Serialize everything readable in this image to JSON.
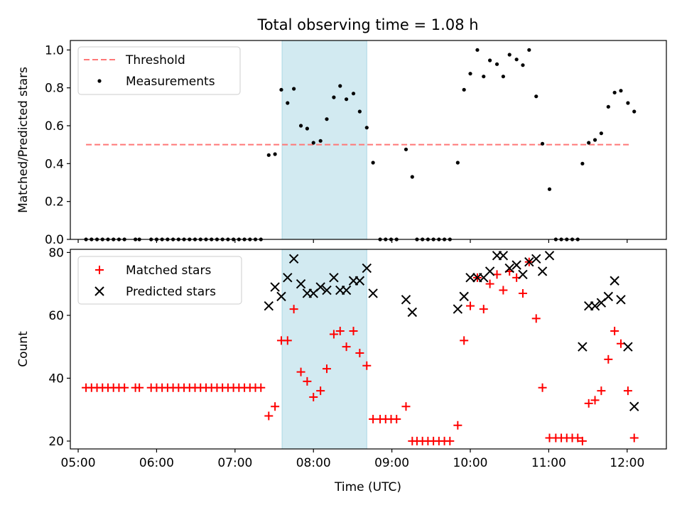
{
  "title": "Total observing time = 1.08 h",
  "chart_data": [
    {
      "type": "scatter",
      "ylabel": "Matched/Predicted stars",
      "xlim": [
        4.9,
        12.5
      ],
      "ylim": [
        0,
        1.05
      ],
      "grid": false,
      "legend_position": "top-left",
      "yticks": [
        {
          "v": 0,
          "label": "0.0"
        },
        {
          "v": 0.2,
          "label": "0.2"
        },
        {
          "v": 0.4,
          "label": "0.4"
        },
        {
          "v": 0.6,
          "label": "0.6"
        },
        {
          "v": 0.8,
          "label": "0.8"
        },
        {
          "v": 1.0,
          "label": "1.0"
        }
      ],
      "span": {
        "x0": 7.6,
        "x1": 8.68,
        "color": "#add8e6"
      },
      "threshold": {
        "name": "Threshold",
        "y": 0.5,
        "x0": 5.1,
        "x1": 12.03,
        "color": "#ff7777"
      },
      "series": [
        {
          "name": "Measurements",
          "color": "#000000",
          "marker": "dot",
          "points": [
            [
              5.1,
              0
            ],
            [
              5.17,
              0
            ],
            [
              5.24,
              0
            ],
            [
              5.31,
              0
            ],
            [
              5.38,
              0
            ],
            [
              5.45,
              0
            ],
            [
              5.52,
              0
            ],
            [
              5.59,
              0
            ],
            [
              5.73,
              0
            ],
            [
              5.78,
              0
            ],
            [
              5.93,
              0
            ],
            [
              6.0,
              0
            ],
            [
              6.07,
              0
            ],
            [
              6.14,
              0
            ],
            [
              6.21,
              0
            ],
            [
              6.28,
              0
            ],
            [
              6.35,
              0
            ],
            [
              6.42,
              0
            ],
            [
              6.49,
              0
            ],
            [
              6.56,
              0
            ],
            [
              6.63,
              0
            ],
            [
              6.7,
              0
            ],
            [
              6.77,
              0
            ],
            [
              6.84,
              0
            ],
            [
              6.91,
              0
            ],
            [
              6.98,
              0
            ],
            [
              7.05,
              0
            ],
            [
              7.12,
              0
            ],
            [
              7.19,
              0
            ],
            [
              7.26,
              0
            ],
            [
              7.33,
              0
            ],
            [
              7.43,
              0.445
            ],
            [
              7.51,
              0.45
            ],
            [
              7.59,
              0.79
            ],
            [
              7.67,
              0.72
            ],
            [
              7.75,
              0.795
            ],
            [
              7.84,
              0.6
            ],
            [
              7.92,
              0.585
            ],
            [
              8.0,
              0.51
            ],
            [
              8.09,
              0.52
            ],
            [
              8.17,
              0.635
            ],
            [
              8.26,
              0.75
            ],
            [
              8.34,
              0.81
            ],
            [
              8.42,
              0.74
            ],
            [
              8.51,
              0.77
            ],
            [
              8.59,
              0.675
            ],
            [
              8.68,
              0.59
            ],
            [
              8.76,
              0.405
            ],
            [
              8.85,
              0
            ],
            [
              8.92,
              0
            ],
            [
              8.99,
              0
            ],
            [
              9.06,
              0
            ],
            [
              9.18,
              0.475
            ],
            [
              9.26,
              0.33
            ],
            [
              9.32,
              0
            ],
            [
              9.39,
              0
            ],
            [
              9.46,
              0
            ],
            [
              9.53,
              0
            ],
            [
              9.6,
              0
            ],
            [
              9.67,
              0
            ],
            [
              9.74,
              0
            ],
            [
              9.84,
              0.405
            ],
            [
              9.92,
              0.79
            ],
            [
              10.0,
              0.875
            ],
            [
              10.09,
              1.0
            ],
            [
              10.17,
              0.86
            ],
            [
              10.25,
              0.945
            ],
            [
              10.34,
              0.925
            ],
            [
              10.42,
              0.86
            ],
            [
              10.5,
              0.975
            ],
            [
              10.59,
              0.95
            ],
            [
              10.67,
              0.92
            ],
            [
              10.75,
              1.0
            ],
            [
              10.84,
              0.755
            ],
            [
              10.92,
              0.505
            ],
            [
              11.01,
              0.265
            ],
            [
              11.09,
              0
            ],
            [
              11.16,
              0
            ],
            [
              11.23,
              0
            ],
            [
              11.3,
              0
            ],
            [
              11.37,
              0
            ],
            [
              11.43,
              0.4
            ],
            [
              11.51,
              0.51
            ],
            [
              11.59,
              0.525
            ],
            [
              11.67,
              0.56
            ],
            [
              11.76,
              0.7
            ],
            [
              11.84,
              0.775
            ],
            [
              11.92,
              0.785
            ],
            [
              12.01,
              0.72
            ],
            [
              12.09,
              0.675
            ]
          ]
        }
      ]
    },
    {
      "type": "scatter",
      "ylabel": "Count",
      "xlabel": "Time (UTC)",
      "xlim": [
        4.9,
        12.5
      ],
      "ylim": [
        17.5,
        81
      ],
      "grid": false,
      "legend_position": "top-left",
      "xticks": [
        {
          "v": 5,
          "label": "05:00"
        },
        {
          "v": 6,
          "label": "06:00"
        },
        {
          "v": 7,
          "label": "07:00"
        },
        {
          "v": 8,
          "label": "08:00"
        },
        {
          "v": 9,
          "label": "09:00"
        },
        {
          "v": 10,
          "label": "10:00"
        },
        {
          "v": 11,
          "label": "11:00"
        },
        {
          "v": 12,
          "label": "12:00"
        }
      ],
      "yticks": [
        {
          "v": 20,
          "label": "20"
        },
        {
          "v": 40,
          "label": "40"
        },
        {
          "v": 60,
          "label": "60"
        },
        {
          "v": 80,
          "label": "80"
        }
      ],
      "span": {
        "x0": 7.6,
        "x1": 8.68,
        "color": "#add8e6"
      },
      "series": [
        {
          "name": "Matched stars",
          "color": "#ff0000",
          "marker": "plus",
          "points": [
            [
              5.1,
              37
            ],
            [
              5.17,
              37
            ],
            [
              5.24,
              37
            ],
            [
              5.31,
              37
            ],
            [
              5.38,
              37
            ],
            [
              5.45,
              37
            ],
            [
              5.52,
              37
            ],
            [
              5.59,
              37
            ],
            [
              5.73,
              37
            ],
            [
              5.78,
              37
            ],
            [
              5.93,
              37
            ],
            [
              6.0,
              37
            ],
            [
              6.07,
              37
            ],
            [
              6.14,
              37
            ],
            [
              6.21,
              37
            ],
            [
              6.28,
              37
            ],
            [
              6.35,
              37
            ],
            [
              6.42,
              37
            ],
            [
              6.49,
              37
            ],
            [
              6.56,
              37
            ],
            [
              6.63,
              37
            ],
            [
              6.7,
              37
            ],
            [
              6.77,
              37
            ],
            [
              6.84,
              37
            ],
            [
              6.91,
              37
            ],
            [
              6.98,
              37
            ],
            [
              7.05,
              37
            ],
            [
              7.12,
              37
            ],
            [
              7.19,
              37
            ],
            [
              7.26,
              37
            ],
            [
              7.33,
              37
            ],
            [
              7.43,
              28
            ],
            [
              7.51,
              31
            ],
            [
              7.59,
              52
            ],
            [
              7.67,
              52
            ],
            [
              7.75,
              62
            ],
            [
              7.84,
              42
            ],
            [
              7.92,
              39
            ],
            [
              8.0,
              34
            ],
            [
              8.09,
              36
            ],
            [
              8.17,
              43
            ],
            [
              8.26,
              54
            ],
            [
              8.34,
              55
            ],
            [
              8.42,
              50
            ],
            [
              8.51,
              55
            ],
            [
              8.59,
              48
            ],
            [
              8.68,
              44
            ],
            [
              8.76,
              27
            ],
            [
              8.85,
              27
            ],
            [
              8.92,
              27
            ],
            [
              8.99,
              27
            ],
            [
              9.06,
              27
            ],
            [
              9.18,
              31
            ],
            [
              9.26,
              20
            ],
            [
              9.32,
              20
            ],
            [
              9.39,
              20
            ],
            [
              9.46,
              20
            ],
            [
              9.53,
              20
            ],
            [
              9.6,
              20
            ],
            [
              9.67,
              20
            ],
            [
              9.74,
              20
            ],
            [
              9.84,
              25
            ],
            [
              9.92,
              52
            ],
            [
              10.0,
              63
            ],
            [
              10.09,
              72
            ],
            [
              10.17,
              62
            ],
            [
              10.25,
              70
            ],
            [
              10.34,
              73
            ],
            [
              10.42,
              68
            ],
            [
              10.5,
              74
            ],
            [
              10.59,
              72
            ],
            [
              10.67,
              67
            ],
            [
              10.75,
              77
            ],
            [
              10.84,
              59
            ],
            [
              10.92,
              37
            ],
            [
              11.01,
              21
            ],
            [
              11.09,
              21
            ],
            [
              11.16,
              21
            ],
            [
              11.23,
              21
            ],
            [
              11.3,
              21
            ],
            [
              11.37,
              21
            ],
            [
              11.43,
              20
            ],
            [
              11.51,
              32
            ],
            [
              11.59,
              33
            ],
            [
              11.67,
              36
            ],
            [
              11.76,
              46
            ],
            [
              11.84,
              55
            ],
            [
              11.92,
              51
            ],
            [
              12.01,
              36
            ],
            [
              12.09,
              21
            ]
          ]
        },
        {
          "name": "Predicted stars",
          "color": "#000000",
          "marker": "x",
          "points": [
            [
              7.43,
              63
            ],
            [
              7.51,
              69
            ],
            [
              7.59,
              66
            ],
            [
              7.67,
              72
            ],
            [
              7.75,
              78
            ],
            [
              7.84,
              70
            ],
            [
              7.92,
              67
            ],
            [
              8.0,
              67
            ],
            [
              8.09,
              69
            ],
            [
              8.17,
              68
            ],
            [
              8.26,
              72
            ],
            [
              8.34,
              68
            ],
            [
              8.42,
              68
            ],
            [
              8.51,
              71
            ],
            [
              8.59,
              71
            ],
            [
              8.68,
              75
            ],
            [
              8.76,
              67
            ],
            [
              9.18,
              65
            ],
            [
              9.26,
              61
            ],
            [
              9.84,
              62
            ],
            [
              9.92,
              66
            ],
            [
              10.0,
              72
            ],
            [
              10.09,
              72
            ],
            [
              10.17,
              72
            ],
            [
              10.25,
              74
            ],
            [
              10.34,
              79
            ],
            [
              10.42,
              79
            ],
            [
              10.5,
              75
            ],
            [
              10.59,
              76
            ],
            [
              10.67,
              73
            ],
            [
              10.75,
              77
            ],
            [
              10.84,
              78
            ],
            [
              10.92,
              74
            ],
            [
              11.01,
              79
            ],
            [
              11.43,
              50
            ],
            [
              11.51,
              63
            ],
            [
              11.59,
              63
            ],
            [
              11.67,
              64
            ],
            [
              11.76,
              66
            ],
            [
              11.84,
              71
            ],
            [
              11.92,
              65
            ],
            [
              12.01,
              50
            ],
            [
              12.09,
              31
            ]
          ]
        }
      ]
    }
  ]
}
